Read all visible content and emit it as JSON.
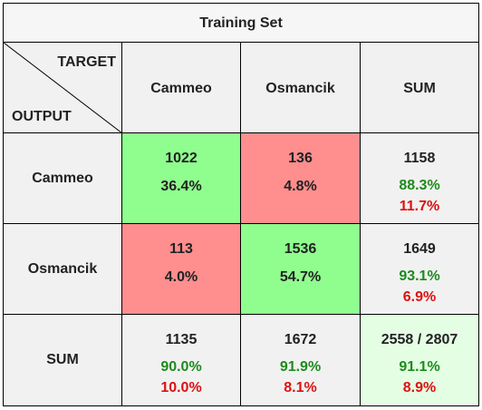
{
  "chart_data": {
    "type": "table",
    "title": "Training Set",
    "corner": {
      "columns_label": "TARGET",
      "rows_label": "OUTPUT"
    },
    "columns": [
      "Cammeo",
      "Osmancik",
      "SUM"
    ],
    "rows": [
      {
        "label": "Cammeo",
        "cells": [
          {
            "count": "1022",
            "pct": "36.4%"
          },
          {
            "count": "136",
            "pct": "4.8%"
          },
          {
            "count": "1158",
            "pct_correct": "88.3%",
            "pct_wrong": "11.7%"
          }
        ]
      },
      {
        "label": "Osmancik",
        "cells": [
          {
            "count": "113",
            "pct": "4.0%"
          },
          {
            "count": "1536",
            "pct": "54.7%"
          },
          {
            "count": "1649",
            "pct_correct": "93.1%",
            "pct_wrong": "6.9%"
          }
        ]
      },
      {
        "label": "SUM",
        "cells": [
          {
            "count": "1135",
            "pct_correct": "90.0%",
            "pct_wrong": "10.0%"
          },
          {
            "count": "1672",
            "pct_correct": "91.9%",
            "pct_wrong": "8.1%"
          },
          {
            "count": "2558 / 2807",
            "pct_correct": "91.1%",
            "pct_wrong": "8.9%"
          }
        ]
      }
    ],
    "colors": {
      "correct_fill": "#8ffe8e",
      "error_fill": "#ff8e8e",
      "header_fill": "#f1f1f1",
      "total_fill": "#e4fee4",
      "correct_text": "#1e8a1e",
      "error_text": "#dd1111"
    }
  }
}
